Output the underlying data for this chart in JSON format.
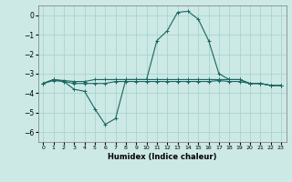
{
  "x": [
    0,
    1,
    2,
    3,
    4,
    5,
    6,
    7,
    8,
    9,
    10,
    11,
    12,
    13,
    14,
    15,
    16,
    17,
    18,
    19,
    20,
    21,
    22,
    23
  ],
  "y_main": [
    -3.5,
    -3.3,
    -3.4,
    -3.8,
    -3.9,
    -4.8,
    -5.6,
    -5.3,
    -3.3,
    -3.3,
    -3.3,
    -1.3,
    -0.8,
    0.15,
    0.2,
    -0.2,
    -1.3,
    -3.0,
    -3.3,
    -3.3,
    -3.5,
    -3.5,
    -3.6,
    -3.6
  ],
  "y_flat1": [
    -3.5,
    -3.3,
    -3.35,
    -3.4,
    -3.4,
    -3.3,
    -3.3,
    -3.3,
    -3.3,
    -3.3,
    -3.3,
    -3.3,
    -3.3,
    -3.3,
    -3.3,
    -3.3,
    -3.3,
    -3.3,
    -3.3,
    -3.3,
    -3.5,
    -3.5,
    -3.6,
    -3.6
  ],
  "y_flat2": [
    -3.5,
    -3.35,
    -3.4,
    -3.5,
    -3.5,
    -3.5,
    -3.5,
    -3.4,
    -3.4,
    -3.4,
    -3.4,
    -3.4,
    -3.4,
    -3.4,
    -3.4,
    -3.4,
    -3.4,
    -3.35,
    -3.4,
    -3.4,
    -3.5,
    -3.5,
    -3.6,
    -3.6
  ],
  "background_color": "#cce9e5",
  "grid_color": "#aad4cf",
  "line_color": "#1a6660",
  "xlabel": "Humidex (Indice chaleur)",
  "xlim": [
    -0.5,
    23.5
  ],
  "ylim": [
    -6.5,
    0.5
  ],
  "yticks": [
    0,
    -1,
    -2,
    -3,
    -4,
    -5,
    -6
  ],
  "xtick_labels": [
    "0",
    "1",
    "2",
    "3",
    "4",
    "5",
    "6",
    "7",
    "8",
    "9",
    "10",
    "11",
    "12",
    "13",
    "14",
    "15",
    "16",
    "17",
    "18",
    "19",
    "20",
    "21",
    "22",
    "23"
  ]
}
